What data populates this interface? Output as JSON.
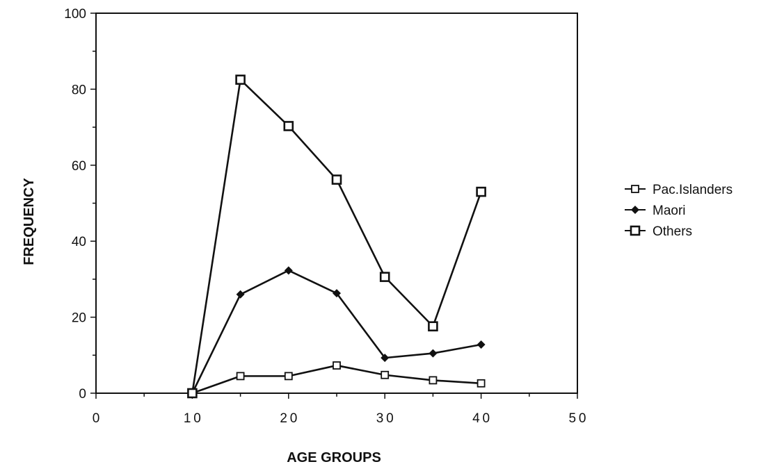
{
  "chart_data": {
    "type": "line",
    "title": "",
    "xlabel": "AGE GROUPS",
    "ylabel": "FREQUENCY",
    "xlim": [
      0,
      50
    ],
    "ylim": [
      0,
      100
    ],
    "x_ticks": [
      "0",
      "10",
      "20",
      "30",
      "40",
      "50"
    ],
    "y_ticks": [
      "0",
      "20",
      "40",
      "60",
      "80",
      "100"
    ],
    "grid": false,
    "legend_position": "right",
    "x": [
      10,
      15,
      20,
      25,
      30,
      35,
      40
    ],
    "series": [
      {
        "name": "Pac.Islanders",
        "marker": "open-square",
        "color": "#111111",
        "values": [
          0,
          4.5,
          4.5,
          7.3,
          4.8,
          3.4,
          2.6
        ]
      },
      {
        "name": "Maori",
        "marker": "filled-diamond",
        "color": "#111111",
        "values": [
          0,
          26,
          32.3,
          26.3,
          9.3,
          10.5,
          12.8
        ]
      },
      {
        "name": "Others",
        "marker": "square",
        "color": "#111111",
        "values": [
          0,
          82.5,
          70.3,
          56.2,
          30.6,
          17.6,
          53
        ]
      }
    ]
  }
}
